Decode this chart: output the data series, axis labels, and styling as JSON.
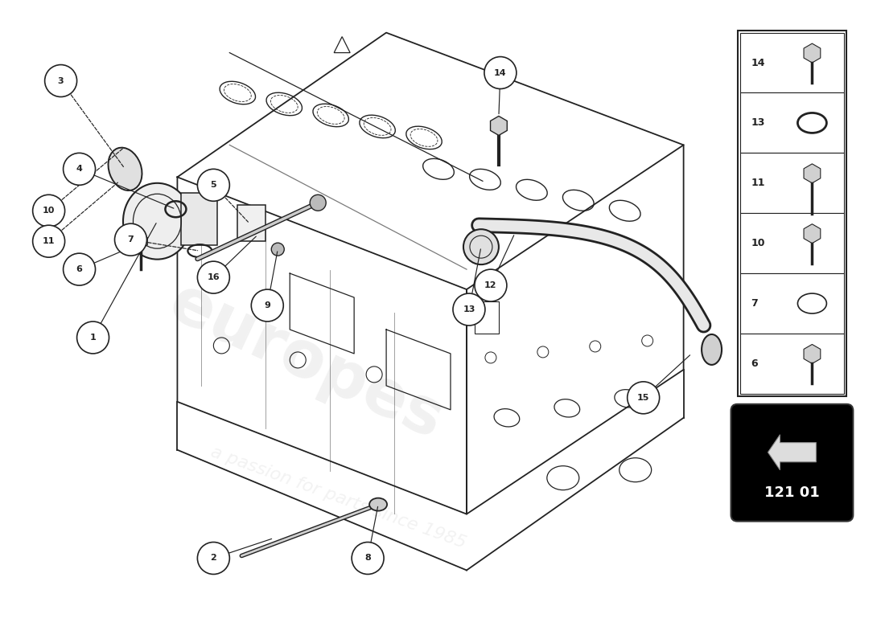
{
  "background_color": "#ffffff",
  "line_color": "#222222",
  "part_number_box": "121 01",
  "parts_legend": [
    {
      "num": 14,
      "type": "bolt_hex"
    },
    {
      "num": 13,
      "type": "ring"
    },
    {
      "num": 11,
      "type": "bolt_long"
    },
    {
      "num": 10,
      "type": "bolt_short"
    },
    {
      "num": 7,
      "type": "ring_thin"
    },
    {
      "num": 6,
      "type": "bolt_short"
    }
  ]
}
